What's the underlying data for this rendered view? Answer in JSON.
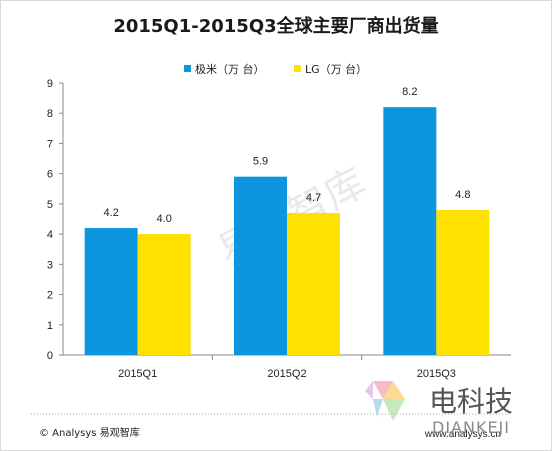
{
  "chart_data": {
    "type": "bar",
    "title": "2015Q1-2015Q3全球主要厂商出货量",
    "categories": [
      "2015Q1",
      "2015Q2",
      "2015Q3"
    ],
    "series": [
      {
        "name": "极米（万 台）",
        "color": "#0b96dd",
        "values": [
          4.2,
          5.9,
          8.2
        ],
        "labels": [
          "4.2",
          "5.9",
          "8.2"
        ]
      },
      {
        "name": "LG（万 台）",
        "color": "#ffe100",
        "values": [
          4.0,
          4.7,
          4.8
        ],
        "labels": [
          "4.0",
          "4.7",
          "4.8"
        ]
      }
    ],
    "ylim": [
      0,
      9
    ],
    "yticks": [
      "0",
      "1",
      "2",
      "3",
      "4",
      "5",
      "6",
      "7",
      "8",
      "9"
    ],
    "legend_position": "top-center",
    "grid": false
  },
  "watermark": "易观智库",
  "footer": {
    "copyright": "© Analysys 易观智库",
    "url": "www.analysys.cn"
  },
  "brand": {
    "name_cn": "电科技",
    "name_en": "DIANKEJI"
  }
}
